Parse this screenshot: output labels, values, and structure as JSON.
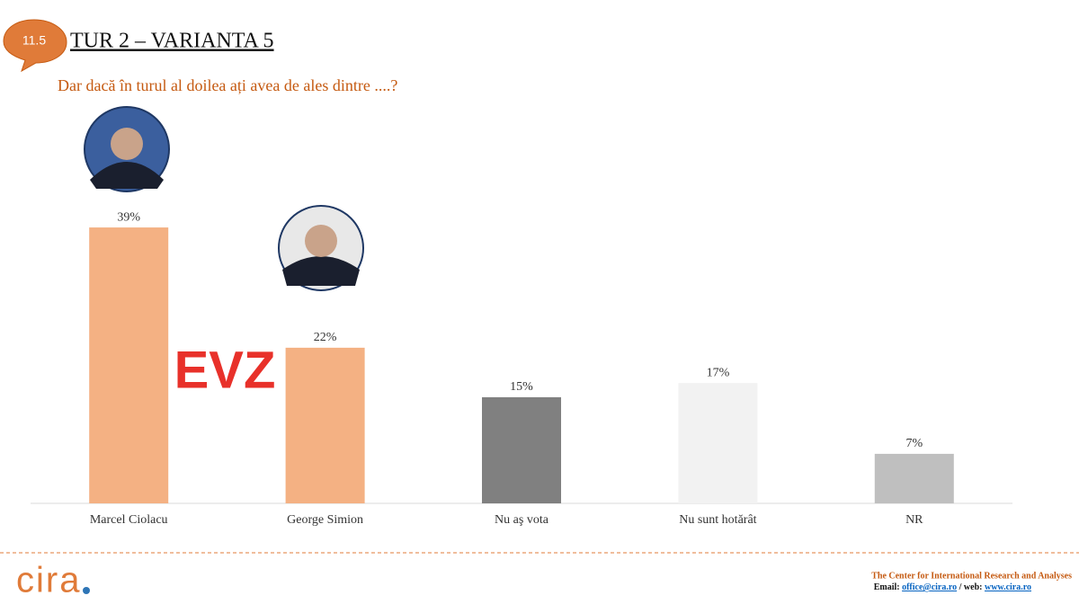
{
  "badge": "11.5",
  "chart_data": {
    "type": "bar",
    "title": "TUR 2 – VARIANTA 5",
    "subtitle": "Dar dacă în turul al doilea ați avea de ales dintre ....?",
    "categories": [
      "Marcel Ciolacu",
      "George Simion",
      "Nu aş vota",
      "Nu sunt hotărât",
      "NR"
    ],
    "values": [
      39,
      22,
      15,
      17,
      7
    ],
    "value_labels": [
      "39%",
      "22%",
      "15%",
      "17%",
      "7%"
    ],
    "colors": [
      "#f4b183",
      "#f4b183",
      "#808080",
      "#f2f2f2",
      "#bfbfbf"
    ]
  },
  "watermark": "EVZ",
  "logo": "cira",
  "footer": {
    "org": "The Center for International Research and Analyses",
    "email_label": "Email:",
    "email": "office@cira.ro",
    "web_label": "/ web:",
    "web": "www.cira.ro"
  }
}
